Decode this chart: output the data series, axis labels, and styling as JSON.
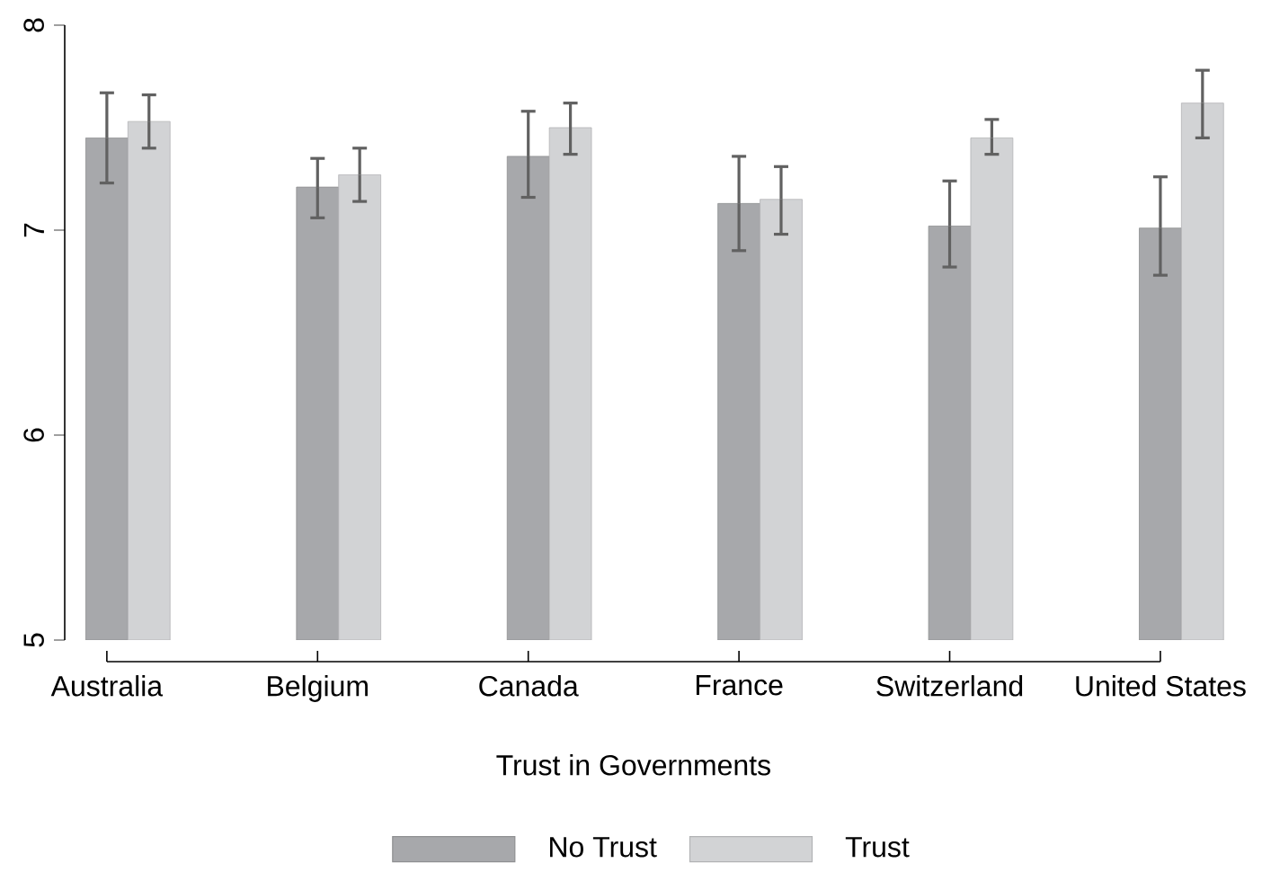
{
  "chart_data": {
    "type": "bar",
    "xlabel": "Trust in Governments",
    "categories": [
      "Australia",
      "Belgium",
      "Canada",
      "France",
      "Switzerland",
      "United States"
    ],
    "series": [
      {
        "name": "No Trust",
        "color": "#a7a8ab",
        "values": [
          7.45,
          7.21,
          7.36,
          7.13,
          7.02,
          7.01
        ],
        "errors": [
          [
            7.23,
            7.67
          ],
          [
            7.06,
            7.35
          ],
          [
            7.16,
            7.58
          ],
          [
            6.9,
            7.36
          ],
          [
            6.82,
            7.24
          ],
          [
            6.78,
            7.26
          ]
        ]
      },
      {
        "name": "Trust",
        "color": "#d2d3d5",
        "values": [
          7.53,
          7.27,
          7.5,
          7.15,
          7.45,
          7.62
        ],
        "errors": [
          [
            7.4,
            7.66
          ],
          [
            7.14,
            7.4
          ],
          [
            7.37,
            7.62
          ],
          [
            6.98,
            7.31
          ],
          [
            7.37,
            7.54
          ],
          [
            7.45,
            7.78
          ]
        ]
      }
    ],
    "ylim": [
      5,
      8
    ],
    "yticks": [
      5,
      6,
      7,
      8
    ],
    "legend": "bottom"
  }
}
